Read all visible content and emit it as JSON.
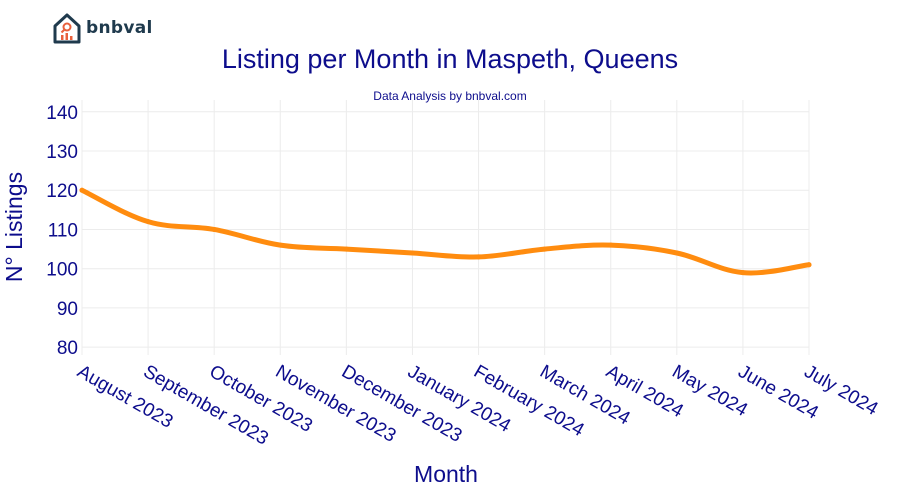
{
  "brand": {
    "name": "bnbval"
  },
  "chart_data": {
    "type": "line",
    "title": "Listing per Month in Maspeth, Queens",
    "subtitle": "Data Analysis by bnbval.com",
    "xlabel": "Month",
    "ylabel": "N° Listings",
    "categories": [
      "August 2023",
      "September 2023",
      "October 2023",
      "November 2023",
      "December 2023",
      "January 2024",
      "February 2024",
      "March 2024",
      "April 2024",
      "May 2024",
      "June 2024",
      "July 2024"
    ],
    "series": [
      {
        "values": [
          120,
          112,
          110,
          106,
          105,
          104,
          103,
          105,
          106,
          104,
          99,
          101
        ]
      }
    ],
    "ylim": [
      78,
      143
    ],
    "yticks": [
      80,
      90,
      100,
      110,
      120,
      130,
      140
    ],
    "grid": true,
    "line_color": "#ff8c0f",
    "text_color": "#0d0d8c"
  }
}
